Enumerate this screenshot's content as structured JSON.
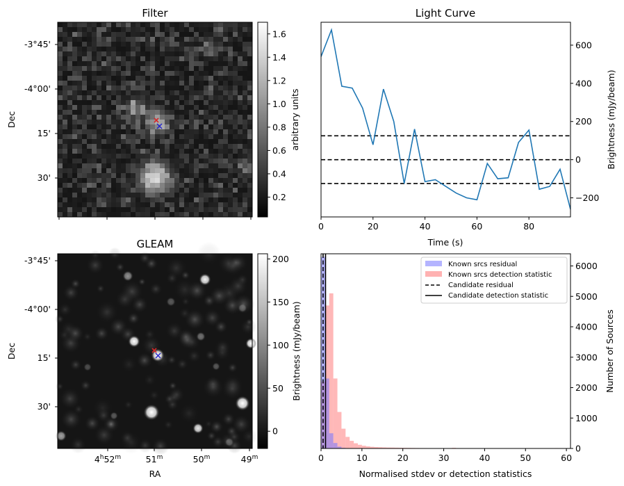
{
  "panels": {
    "filter": {
      "title": "Filter",
      "ylabel": "Dec",
      "yticks": [
        "-3°45'",
        "-4°00'",
        "15'",
        "30'"
      ],
      "colorbar": {
        "label": "arbitrary units",
        "ticks": [
          "0.2",
          "0.4",
          "0.6",
          "0.8",
          "1.0",
          "1.2",
          "1.4",
          "1.6"
        ],
        "tick_values": [
          0.2,
          0.4,
          0.6,
          0.8,
          1.0,
          1.2,
          1.4,
          1.6
        ],
        "range": [
          0.03,
          1.7
        ]
      }
    },
    "gleam": {
      "title": "GLEAM",
      "ylabel": "Dec",
      "xlabel": "RA",
      "yticks": [
        "-3°45'",
        "-4°00'",
        "15'",
        "30'"
      ],
      "xticks": [
        {
          "main": "4",
          "sup1": "h",
          "mid": "52",
          "sup2": "m"
        },
        {
          "main": "51",
          "sup1": "m",
          "mid": "",
          "sup2": ""
        },
        {
          "main": "50",
          "sup1": "m",
          "mid": "",
          "sup2": ""
        },
        {
          "main": "49",
          "sup1": "m",
          "mid": "",
          "sup2": ""
        }
      ],
      "colorbar": {
        "label": "Brightness (mJy/beam)",
        "ticks": [
          "0",
          "50",
          "100",
          "150",
          "200"
        ],
        "tick_values": [
          0,
          50,
          100,
          150,
          200
        ],
        "range": [
          -20,
          206
        ]
      }
    },
    "markers": {
      "red": "#d62728",
      "blue": "#1f1fcc"
    }
  },
  "chart_data": [
    {
      "type": "line",
      "title": "Light Curve",
      "xlabel": "Time (s)",
      "ylabel": "Brightness (mJy/beam)",
      "xlim": [
        0,
        96
      ],
      "ylim": [
        -300,
        720
      ],
      "xticks": [
        0,
        20,
        40,
        60,
        80
      ],
      "yticks": [
        -200,
        0,
        200,
        400,
        600
      ],
      "color": "#1f77b4",
      "series": [
        {
          "x": [
            0,
            4,
            8,
            12,
            16,
            20,
            24,
            28,
            32,
            36,
            40,
            44,
            48,
            52,
            56,
            60,
            64,
            68,
            72,
            76,
            80,
            84,
            88,
            92,
            96
          ],
          "y": [
            540,
            680,
            385,
            375,
            270,
            78,
            370,
            200,
            -125,
            160,
            -115,
            -105,
            -140,
            -175,
            -200,
            -210,
            -20,
            -100,
            -95,
            90,
            155,
            -155,
            -140,
            -50,
            -260
          ]
        }
      ],
      "hlines": [
        {
          "y": 125,
          "style": "dashed"
        },
        {
          "y": 0,
          "style": "dashed"
        },
        {
          "y": -125,
          "style": "dashed"
        }
      ]
    },
    {
      "type": "bar",
      "xlabel": "Normalised stdev or detection statistics",
      "ylabel": "Number of Sources",
      "xlim": [
        0,
        61
      ],
      "ylim": [
        0,
        6400
      ],
      "xticks": [
        0,
        10,
        20,
        30,
        40,
        50,
        60
      ],
      "yticks": [
        0,
        1000,
        2000,
        3000,
        4000,
        5000,
        6000
      ],
      "bin_width": 1,
      "series": [
        {
          "name": "Known srcs residual",
          "color": "#7777ff",
          "bin_starts": [
            0,
            1,
            2,
            3,
            4,
            5
          ],
          "values": [
            6300,
            2300,
            500,
            180,
            60,
            20
          ]
        },
        {
          "name": "Known srcs detection statistic",
          "color": "#ff8888",
          "bin_starts": [
            0,
            1,
            2,
            3,
            4,
            5,
            6,
            7,
            8,
            9,
            10,
            11,
            12,
            13,
            14,
            15,
            16,
            17,
            18,
            19,
            20,
            21,
            22,
            23,
            24,
            25,
            26,
            27,
            28,
            29,
            30,
            31,
            32,
            33,
            57
          ],
          "values": [
            2200,
            4700,
            5100,
            2300,
            1200,
            650,
            380,
            250,
            170,
            120,
            90,
            70,
            55,
            45,
            40,
            35,
            30,
            28,
            25,
            22,
            20,
            18,
            16,
            14,
            12,
            12,
            10,
            10,
            9,
            8,
            8,
            7,
            20,
            6,
            12
          ]
        }
      ],
      "vlines": [
        {
          "name": "Candidate residual",
          "x": 0.5,
          "style": "dashed"
        },
        {
          "name": "Candidate detection statistic",
          "x": 1.1,
          "style": "solid"
        }
      ],
      "legend": "top-right"
    }
  ]
}
